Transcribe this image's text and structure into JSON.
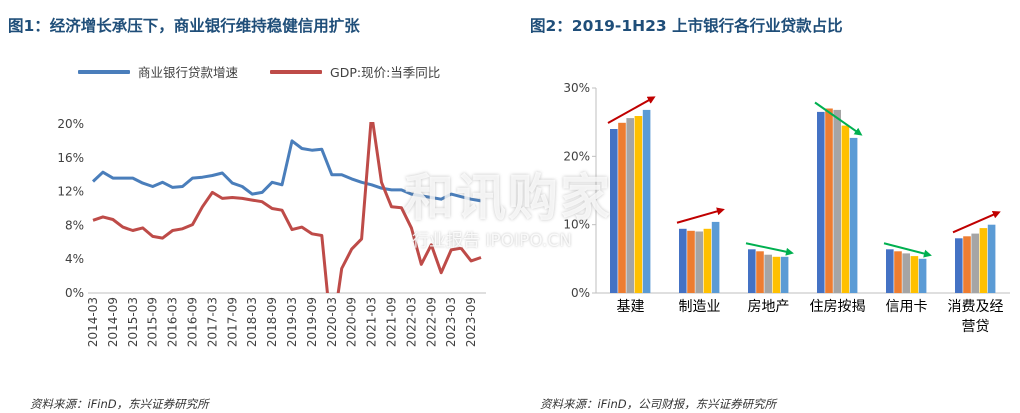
{
  "left": {
    "title": "图1：经济增长承压下，商业银行维持稳健信用扩张",
    "source": "资料来源：iFinD，东兴证券研究所"
  },
  "right": {
    "title": "图2：2019-1H23 上市银行各行业贷款占比",
    "source": "资料来源：iFinD，公司财报，东兴证券研究所"
  },
  "watermark": {
    "big": "和讯购家",
    "small": "行业报告 IPOIPO.CN"
  },
  "chart_data": [
    {
      "type": "line",
      "title": "图1：经济增长承压下，商业银行维持稳健信用扩张",
      "x": [
        "2014-03",
        "2014-06",
        "2014-09",
        "2014-12",
        "2015-03",
        "2015-06",
        "2015-09",
        "2015-12",
        "2016-03",
        "2016-06",
        "2016-09",
        "2016-12",
        "2017-03",
        "2017-06",
        "2017-09",
        "2017-12",
        "2018-03",
        "2018-06",
        "2018-09",
        "2018-12",
        "2019-03",
        "2019-06",
        "2019-09",
        "2019-12",
        "2020-03",
        "2020-06",
        "2020-09",
        "2020-12",
        "2021-03",
        "2021-06",
        "2021-09",
        "2021-12",
        "2022-03",
        "2022-06",
        "2022-09",
        "2022-12",
        "2023-03",
        "2023-06",
        "2023-09",
        "2023-12"
      ],
      "tick_labels": [
        "2014-03",
        "2014-09",
        "2015-03",
        "2015-09",
        "2016-03",
        "2016-09",
        "2017-03",
        "2017-09",
        "2018-03",
        "2018-09",
        "2019-03",
        "2019-09",
        "2020-03",
        "2020-09",
        "2021-03",
        "2021-09",
        "2022-03",
        "2022-09",
        "2023-03",
        "2023-09"
      ],
      "y_ticks": [
        "0%",
        "4%",
        "8%",
        "12%",
        "16%",
        "20%"
      ],
      "ylim": [
        0,
        20
      ],
      "grid": false,
      "legend_position": "top",
      "series": [
        {
          "name": "商业银行贷款增速",
          "color": "#4a7ebb",
          "values": [
            13.2,
            14.3,
            13.6,
            13.6,
            13.6,
            13.0,
            12.6,
            13.1,
            12.5,
            12.6,
            13.6,
            13.7,
            13.9,
            14.2,
            13.0,
            12.6,
            11.7,
            11.9,
            13.1,
            12.8,
            18.0,
            17.1,
            16.9,
            17.0,
            14.0,
            14.0,
            13.5,
            13.1,
            12.8,
            12.4,
            12.2,
            12.2,
            11.7,
            11.5,
            11.3,
            11.1,
            11.7,
            11.4,
            11.1,
            10.9
          ]
        },
        {
          "name": "GDP:现价:当季同比",
          "color": "#be4b48",
          "values": [
            8.6,
            9.0,
            8.7,
            7.8,
            7.4,
            7.7,
            6.7,
            6.5,
            7.4,
            7.6,
            8.1,
            10.2,
            11.9,
            11.2,
            11.3,
            11.2,
            11.0,
            10.8,
            10.0,
            9.8,
            7.5,
            7.8,
            7.0,
            6.8,
            -5.3,
            2.9,
            5.2,
            6.4,
            21.2,
            13.1,
            10.2,
            10.1,
            7.7,
            3.4,
            5.7,
            2.4,
            5.1,
            5.3,
            3.8,
            4.2
          ]
        }
      ]
    },
    {
      "type": "bar",
      "title": "图2：2019-1H23 上市银行各行业贷款占比",
      "categories": [
        "基建",
        "制造业",
        "房地产",
        "住房按揭",
        "信用卡",
        "消费及经营贷"
      ],
      "category_lines": [
        [
          "基建"
        ],
        [
          "制造业"
        ],
        [
          "房地产"
        ],
        [
          "住房按揭"
        ],
        [
          "信用卡"
        ],
        [
          "消费及经",
          "营贷"
        ]
      ],
      "y_ticks": [
        "0%",
        "10%",
        "20%",
        "30%"
      ],
      "ylim": [
        0,
        30
      ],
      "grid": false,
      "bar_colors": [
        "#4472c4",
        "#ed7d31",
        "#a5a5a5",
        "#ffc000",
        "#5b9bd5"
      ],
      "series": [
        {
          "values": [
            24.0,
            9.4,
            6.4,
            26.5,
            6.4,
            8.0
          ]
        },
        {
          "values": [
            24.9,
            9.1,
            6.1,
            27.0,
            6.1,
            8.3
          ]
        },
        {
          "values": [
            25.6,
            9.0,
            5.6,
            26.8,
            5.8,
            8.7
          ]
        },
        {
          "values": [
            25.9,
            9.4,
            5.3,
            24.5,
            5.4,
            9.5
          ]
        },
        {
          "values": [
            26.8,
            10.4,
            5.3,
            22.7,
            5.0,
            10.0
          ]
        }
      ],
      "trend_arrows": [
        {
          "category": "基建",
          "direction": "up",
          "color": "#c00000"
        },
        {
          "category": "制造业",
          "direction": "up",
          "color": "#c00000"
        },
        {
          "category": "房地产",
          "direction": "down",
          "color": "#00b050"
        },
        {
          "category": "住房按揭",
          "direction": "down",
          "color": "#00b050"
        },
        {
          "category": "信用卡",
          "direction": "down",
          "color": "#00b050"
        },
        {
          "category": "消费及经营贷",
          "direction": "up",
          "color": "#c00000"
        }
      ]
    }
  ]
}
